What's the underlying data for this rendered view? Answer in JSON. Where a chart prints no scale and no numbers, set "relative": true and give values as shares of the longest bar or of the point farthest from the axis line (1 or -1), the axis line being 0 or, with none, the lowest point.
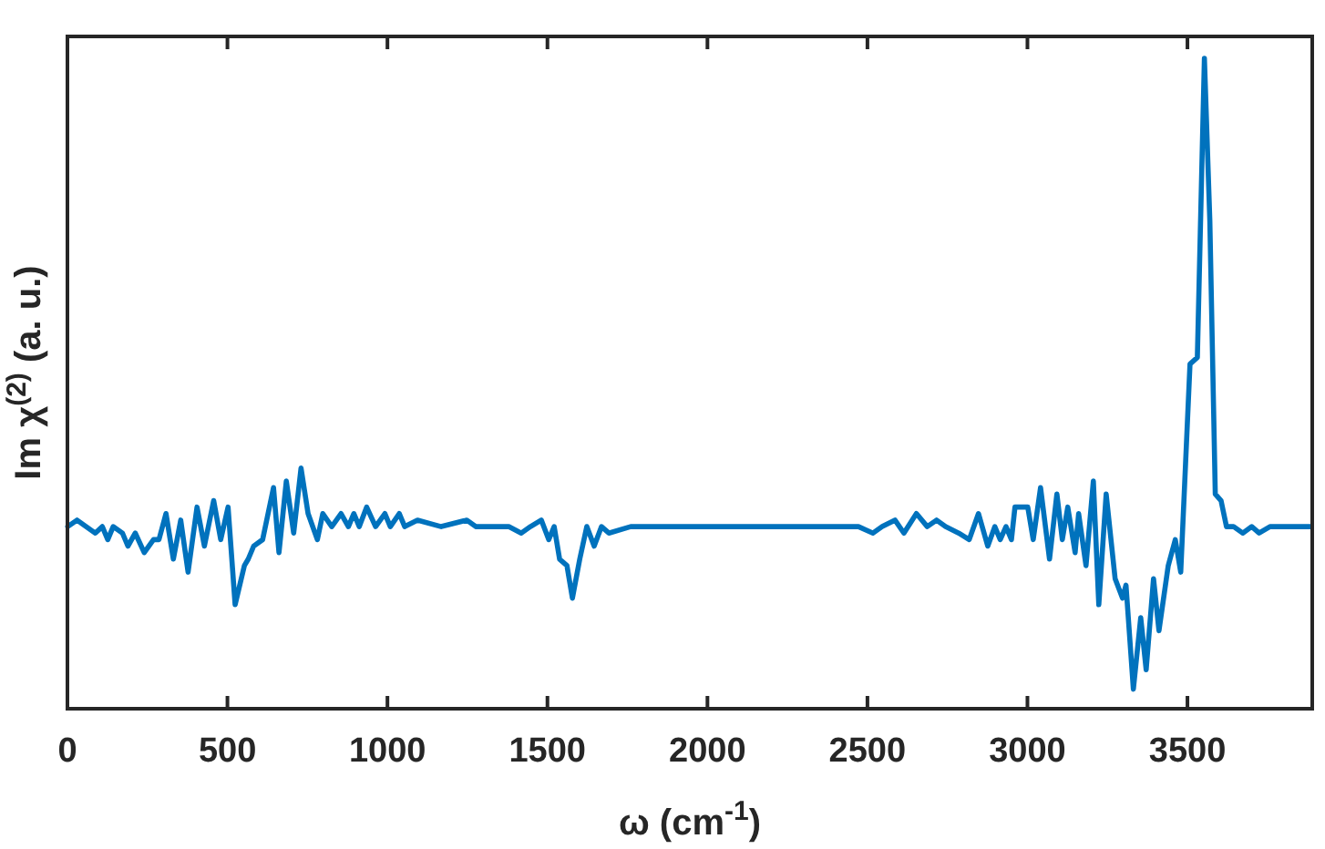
{
  "chart_data": {
    "type": "line",
    "relative": true,
    "xlabel": "ω (cm$^{-1}$)",
    "ylabel": "Im χ$^{(2)}$ (a. u.)",
    "xlim": [
      0,
      3890
    ],
    "xticks": [
      0,
      500,
      1000,
      1500,
      2000,
      2500,
      3000,
      3500
    ],
    "series": [
      {
        "color": "#0072bd",
        "x": [
          1,
          30,
          58,
          87,
          109,
          126,
          143,
          172,
          189,
          212,
          240,
          269,
          286,
          308,
          331,
          354,
          377,
          405,
          428,
          457,
          479,
          502,
          524,
          553,
          565,
          582,
          610,
          644,
          661,
          684,
          707,
          730,
          752,
          781,
          798,
          826,
          855,
          878,
          895,
          912,
          935,
          963,
          992,
          1009,
          1037,
          1054,
          1094,
          1168,
          1248,
          1276,
          1305,
          1339,
          1379,
          1418,
          1447,
          1481,
          1504,
          1521,
          1538,
          1561,
          1578,
          1601,
          1623,
          1646,
          1669,
          1692,
          1760,
          1948,
          2136,
          2330,
          2472,
          2517,
          2546,
          2586,
          2614,
          2653,
          2687,
          2716,
          2744,
          2785,
          2818,
          2847,
          2876,
          2898,
          2915,
          2933,
          2950,
          2961,
          2984,
          3001,
          3018,
          3041,
          3069,
          3092,
          3109,
          3126,
          3149,
          3160,
          3183,
          3206,
          3223,
          3246,
          3274,
          3297,
          3308,
          3331,
          3354,
          3371,
          3394,
          3411,
          3440,
          3462,
          3479,
          3508,
          3531,
          3553,
          3570,
          3587,
          3605,
          3622,
          3644,
          3673,
          3701,
          3724,
          3758,
          3798,
          3837,
          3883
        ],
        "values": [
          0.28,
          0.29,
          0.28,
          0.27,
          0.28,
          0.26,
          0.28,
          0.27,
          0.25,
          0.27,
          0.24,
          0.26,
          0.26,
          0.3,
          0.23,
          0.29,
          0.21,
          0.31,
          0.25,
          0.32,
          0.26,
          0.31,
          0.16,
          0.22,
          0.23,
          0.25,
          0.26,
          0.34,
          0.24,
          0.35,
          0.27,
          0.37,
          0.3,
          0.26,
          0.3,
          0.28,
          0.3,
          0.28,
          0.3,
          0.28,
          0.31,
          0.28,
          0.3,
          0.28,
          0.3,
          0.28,
          0.29,
          0.28,
          0.29,
          0.28,
          0.28,
          0.28,
          0.28,
          0.27,
          0.28,
          0.29,
          0.26,
          0.28,
          0.23,
          0.22,
          0.17,
          0.23,
          0.28,
          0.25,
          0.28,
          0.27,
          0.28,
          0.28,
          0.28,
          0.28,
          0.28,
          0.27,
          0.28,
          0.29,
          0.27,
          0.3,
          0.28,
          0.29,
          0.28,
          0.27,
          0.26,
          0.3,
          0.25,
          0.28,
          0.26,
          0.28,
          0.26,
          0.31,
          0.31,
          0.31,
          0.26,
          0.34,
          0.23,
          0.33,
          0.26,
          0.31,
          0.24,
          0.3,
          0.22,
          0.35,
          0.16,
          0.33,
          0.2,
          0.17,
          0.19,
          0.03,
          0.14,
          0.06,
          0.2,
          0.12,
          0.22,
          0.26,
          0.21,
          0.53,
          0.54,
          1,
          0.75,
          0.33,
          0.32,
          0.28,
          0.28,
          0.27,
          0.28,
          0.27,
          0.28,
          0.28,
          0.28,
          0.28
        ]
      }
    ]
  }
}
